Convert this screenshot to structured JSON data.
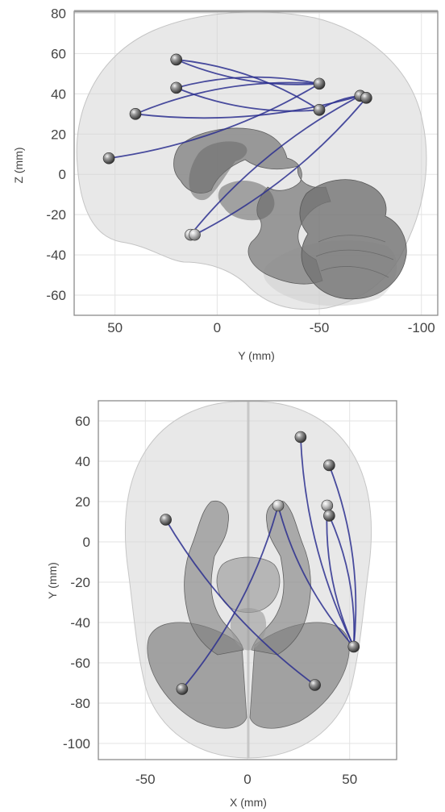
{
  "panels": [
    {
      "id": "sagittal",
      "xlabel": "Y (mm)",
      "ylabel": "Z (mm)",
      "xlim": [
        70,
        -108
      ],
      "ylim": [
        -70,
        81
      ],
      "xticks": [
        {
          "v": 50,
          "label": "50"
        },
        {
          "v": 0,
          "label": "0"
        },
        {
          "v": -50,
          "label": "-50"
        },
        {
          "v": -100,
          "label": "-100"
        }
      ],
      "yticks": [
        {
          "v": 80,
          "label": "80"
        },
        {
          "v": 60,
          "label": "60"
        },
        {
          "v": 40,
          "label": "40"
        },
        {
          "v": 20,
          "label": "20"
        },
        {
          "v": 0,
          "label": "0"
        },
        {
          "v": -20,
          "label": "-20"
        },
        {
          "v": -40,
          "label": "-40"
        },
        {
          "v": -60,
          "label": "-60"
        }
      ],
      "nodes": [
        {
          "x": 53,
          "y": 8
        },
        {
          "x": 40,
          "y": 30
        },
        {
          "x": 20,
          "y": 57
        },
        {
          "x": 20,
          "y": 43
        },
        {
          "x": -50,
          "y": 45
        },
        {
          "x": -50,
          "y": 32
        },
        {
          "x": -70,
          "y": 39
        },
        {
          "x": -73,
          "y": 38
        },
        {
          "x": 13,
          "y": -30
        },
        {
          "x": 11,
          "y": -30
        }
      ],
      "edges": [
        {
          "a": 0,
          "b": 4
        },
        {
          "a": 1,
          "b": 4
        },
        {
          "a": 2,
          "b": 4
        },
        {
          "a": 3,
          "b": 4
        },
        {
          "a": 3,
          "b": 5
        },
        {
          "a": 2,
          "b": 5
        },
        {
          "a": 1,
          "b": 6
        },
        {
          "a": 8,
          "b": 6
        },
        {
          "a": 9,
          "b": 7
        },
        {
          "a": 5,
          "b": 6
        }
      ]
    },
    {
      "id": "axial",
      "xlabel": "X (mm)",
      "ylabel": "Y (mm)",
      "xlim": [
        -73,
        73
      ],
      "ylim": [
        -108,
        70
      ],
      "xticks": [
        {
          "v": -50,
          "label": "-50"
        },
        {
          "v": 0,
          "label": "0"
        },
        {
          "v": 50,
          "label": "50"
        }
      ],
      "yticks": [
        {
          "v": 60,
          "label": "60"
        },
        {
          "v": 40,
          "label": "40"
        },
        {
          "v": 20,
          "label": "20"
        },
        {
          "v": 0,
          "label": "0"
        },
        {
          "v": -20,
          "label": "-20"
        },
        {
          "v": -40,
          "label": "-40"
        },
        {
          "v": -60,
          "label": "-60"
        },
        {
          "v": -80,
          "label": "-80"
        },
        {
          "v": -100,
          "label": "-100"
        }
      ],
      "nodes": [
        {
          "x": -40,
          "y": 11
        },
        {
          "x": -32,
          "y": -73
        },
        {
          "x": 26,
          "y": 52
        },
        {
          "x": 40,
          "y": 38
        },
        {
          "x": 39,
          "y": 18
        },
        {
          "x": 40,
          "y": 13
        },
        {
          "x": 15,
          "y": 18
        },
        {
          "x": 33,
          "y": -71
        },
        {
          "x": 52,
          "y": -52
        }
      ],
      "edges": [
        {
          "a": 0,
          "b": 7
        },
        {
          "a": 6,
          "b": 1
        },
        {
          "a": 2,
          "b": 8
        },
        {
          "a": 3,
          "b": 8
        },
        {
          "a": 4,
          "b": 8
        },
        {
          "a": 5,
          "b": 8
        },
        {
          "a": 6,
          "b": 8
        }
      ]
    }
  ],
  "colors": {
    "edge": "#2b2f8f",
    "frame": "#8c8c8c",
    "grid": "#e3e3e3",
    "brain_outer": "#dadada",
    "brain_inner": "#7c7c7c",
    "node": "#5a5a5a"
  }
}
